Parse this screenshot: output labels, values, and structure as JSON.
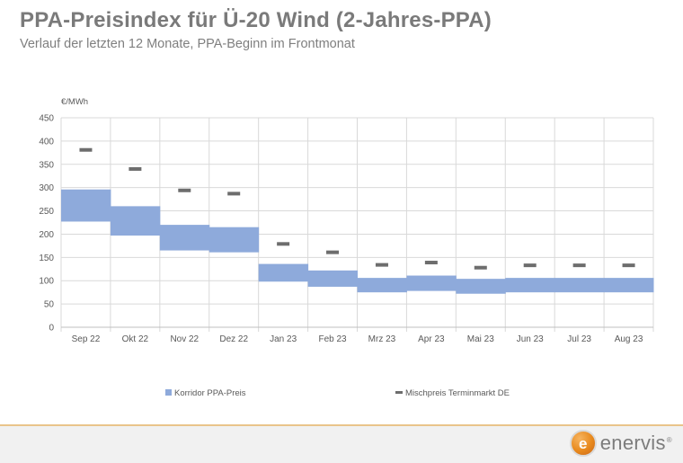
{
  "title": "PPA-Preisindex für Ü-20 Wind (2-Jahres-PPA)",
  "subtitle": "Verlauf der letzten 12 Monate, PPA-Beginn im Frontmonat",
  "logo": {
    "text": "enervis",
    "letter": "e",
    "reg": "®"
  },
  "colors": {
    "corridor": "#8eaadb",
    "marker": "#6d6d6d",
    "grid": "#d9d9d9",
    "axis_text": "#595959",
    "title": "#7a7a7a",
    "footer_line": "#e9c48a"
  },
  "chart_data": {
    "type": "bar",
    "ylabel": "€/MWh",
    "ylim": [
      0,
      450
    ],
    "yticks": [
      0,
      50,
      100,
      150,
      200,
      250,
      300,
      350,
      400,
      450
    ],
    "grid": true,
    "legend_position": "bottom",
    "categories": [
      "Sep 22",
      "Okt 22",
      "Nov 22",
      "Dez 22",
      "Jan 23",
      "Feb 23",
      "Mrz 23",
      "Apr 23",
      "Mai 23",
      "Jun 23",
      "Jul 23",
      "Aug 23"
    ],
    "series": [
      {
        "name": "Korridor PPA-Preis",
        "kind": "floating-bar",
        "low": [
          227,
          197,
          165,
          161,
          98,
          87,
          75,
          78,
          72,
          75,
          75,
          75
        ],
        "high": [
          296,
          260,
          220,
          215,
          136,
          122,
          106,
          111,
          104,
          106,
          106,
          106
        ]
      },
      {
        "name": "Mischpreis Terminmarkt DE",
        "kind": "marker",
        "values": [
          381,
          340,
          294,
          287,
          179,
          161,
          134,
          139,
          128,
          133,
          133,
          133
        ]
      }
    ]
  }
}
